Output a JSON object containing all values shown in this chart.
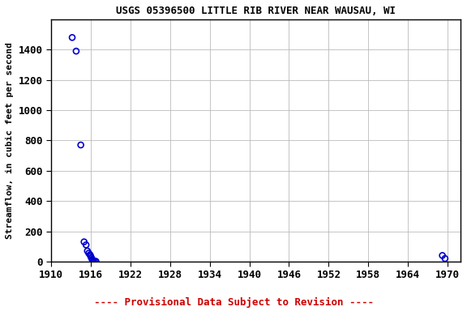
{
  "title": "USGS 05396500 LITTLE RIB RIVER NEAR WAUSAU, WI",
  "ylabel": "Streamflow, in cubic feet per second",
  "x_data": [
    1913.2,
    1913.8,
    1914.5,
    1915.0,
    1915.3,
    1915.5,
    1915.7,
    1915.9,
    1916.0,
    1916.1,
    1916.2,
    1916.3,
    1916.4,
    1916.6,
    1916.8,
    1969.2,
    1969.6
  ],
  "y_data": [
    1480,
    1390,
    770,
    130,
    110,
    70,
    55,
    45,
    35,
    25,
    15,
    10,
    5,
    3,
    1,
    40,
    20
  ],
  "marker_color": "#0000cc",
  "marker_size": 5,
  "xlim": [
    1910,
    1972
  ],
  "ylim": [
    0,
    1600
  ],
  "xticks": [
    1910,
    1916,
    1922,
    1928,
    1934,
    1940,
    1946,
    1952,
    1958,
    1964,
    1970
  ],
  "yticks": [
    0,
    200,
    400,
    600,
    800,
    1000,
    1200,
    1400
  ],
  "grid_color": "#bbbbbb",
  "background_color": "#ffffff",
  "footnote": "---- Provisional Data Subject to Revision ----",
  "footnote_color": "#cc0000",
  "title_fontsize": 9,
  "ylabel_fontsize": 8,
  "tick_fontsize": 9,
  "footnote_fontsize": 9
}
